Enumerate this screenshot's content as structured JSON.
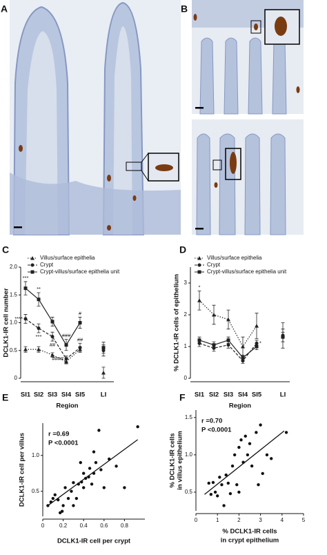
{
  "panel_labels": [
    "A",
    "B"
  ],
  "chart_data": [
    {
      "type": "line",
      "label": "C",
      "ylabel": [
        "DCLK1-IR cell number"
      ],
      "xlabel": [
        "Region"
      ],
      "categories": [
        "SI1",
        "SI2",
        "SI3",
        "SI4",
        "SI5",
        "LI"
      ],
      "ylim": [
        0,
        2
      ],
      "yticks": [
        0,
        0.5,
        {
          "value": 1,
          "label": "1.0"
        },
        1.5,
        {
          "value": 2,
          "label": "2.0"
        }
      ],
      "series": [
        {
          "name": "Villus/surface epithelia",
          "color": "#222222",
          "marker": "triangle",
          "linestyle": "dotted",
          "values": [
            0.52,
            0.52,
            0.42,
            0.3,
            0.52,
            0.1
          ],
          "errors": [
            0.05,
            0.05,
            0.04,
            0.04,
            0.05,
            0.1
          ]
        },
        {
          "name": "Crypt",
          "color": "#222222",
          "marker": "circle",
          "linestyle": "dashed",
          "values": [
            1.07,
            0.9,
            0.75,
            0.35,
            0.55,
            0.5
          ],
          "errors": [
            0.08,
            0.08,
            0.08,
            0.05,
            0.08,
            0.1
          ]
        },
        {
          "name": "Crypt-villus/surface epithelia unit",
          "color": "#222222",
          "marker": "square",
          "linestyle": "solid",
          "values": [
            1.62,
            1.42,
            1.02,
            0.6,
            1.0,
            0.55
          ],
          "errors": [
            0.12,
            0.12,
            0.08,
            0.1,
            0.1,
            0.1
          ]
        }
      ],
      "annotations": [
        {
          "text": "***",
          "series": 2,
          "index": 0,
          "side": "above"
        },
        {
          "text": "****",
          "series": 1,
          "index": 0,
          "side": "left"
        },
        {
          "text": "**",
          "series": 2,
          "index": 1,
          "side": "above"
        },
        {
          "text": "***",
          "series": 1,
          "index": 1,
          "side": "below"
        },
        {
          "text": "##",
          "series": 1,
          "index": 2,
          "side": "below"
        },
        {
          "text": "###",
          "series": 2,
          "index": 3,
          "side": "above"
        },
        {
          "text": "####",
          "series": 1,
          "index": 3,
          "side": "left"
        },
        {
          "text": "#",
          "series": 2,
          "index": 4,
          "side": "above"
        },
        {
          "text": "##",
          "series": 1,
          "index": 4,
          "side": "above"
        }
      ]
    },
    {
      "type": "line",
      "label": "D",
      "ylabel": [
        "% DCLK1-IR cells of epithelium"
      ],
      "xlabel": [
        "Region"
      ],
      "categories": [
        "SI1",
        "SI2",
        "SI3",
        "SI4",
        "SI5",
        "LI"
      ],
      "ylim": [
        0,
        3.5
      ],
      "yticks": [
        0,
        1,
        2,
        3
      ],
      "series": [
        {
          "name": "Villus/surface epithelia",
          "color": "#222222",
          "marker": "triangle",
          "linestyle": "dotted",
          "values": [
            2.45,
            2.0,
            1.85,
            1.0,
            1.65,
            1.35
          ],
          "errors": [
            0.3,
            0.3,
            0.3,
            0.3,
            0.4,
            0.4
          ]
        },
        {
          "name": "Crypt",
          "color": "#222222",
          "marker": "circle",
          "linestyle": "dashed",
          "values": [
            1.1,
            0.95,
            1.05,
            0.55,
            1.1,
            1.35
          ],
          "errors": [
            0.1,
            0.1,
            0.1,
            0.08,
            0.1,
            0.2
          ]
        },
        {
          "name": "Crypt-villus/surface epithelia unit",
          "color": "#222222",
          "marker": "square",
          "linestyle": "solid",
          "values": [
            1.2,
            1.05,
            1.2,
            0.65,
            1.0,
            1.3
          ],
          "errors": [
            0.1,
            0.1,
            0.1,
            0.08,
            0.1,
            0.15
          ]
        }
      ],
      "annotations": [
        {
          "text": "*",
          "series": 0,
          "index": 0,
          "side": "above"
        },
        {
          "text": "*",
          "series": 1,
          "index": 4,
          "side": "right"
        }
      ]
    },
    {
      "type": "scatter",
      "label": "E",
      "ylabel": [
        "DCLK1-IR cell per villus"
      ],
      "xlabel": [
        "DCLK1-IR cell per crypt"
      ],
      "stats": [
        "r =0.69",
        "P <0.0001"
      ],
      "xlim": [
        0,
        1
      ],
      "xticks": [
        0,
        0.2,
        0.4,
        0.6,
        0.8
      ],
      "ylim": [
        0.15,
        1.45
      ],
      "yticks": [
        0.5,
        {
          "value": 1,
          "label": "1.0"
        }
      ],
      "color": "#111111",
      "x": [
        0.05,
        0.08,
        0.1,
        0.12,
        0.15,
        0.17,
        0.19,
        0.2,
        0.22,
        0.25,
        0.28,
        0.3,
        0.3,
        0.33,
        0.35,
        0.37,
        0.38,
        0.4,
        0.4,
        0.42,
        0.45,
        0.46,
        0.48,
        0.5,
        0.5,
        0.52,
        0.55,
        0.57,
        0.6,
        0.65,
        0.72,
        0.8,
        0.93
      ],
      "values": [
        0.3,
        0.35,
        0.4,
        0.45,
        0.38,
        0.2,
        0.22,
        0.3,
        0.55,
        0.4,
        0.5,
        0.62,
        0.3,
        0.4,
        0.6,
        0.9,
        0.63,
        0.55,
        0.75,
        0.68,
        0.7,
        0.82,
        0.6,
        1.05,
        0.75,
        0.9,
        1.35,
        0.8,
        0.55,
        0.95,
        0.85,
        0.55,
        1.4
      ],
      "fit": {
        "x": [
          0.05,
          0.93
        ],
        "y": [
          0.3,
          1.22
        ]
      }
    },
    {
      "type": "scatter",
      "label": "F",
      "ylabel": [
        "% DCLK1-IR cells",
        "in villus epithelium"
      ],
      "xlabel": [
        "% DCLK1-IR cells",
        "in crypt epithelium"
      ],
      "stats": [
        "r =0.70",
        "P <0.0001"
      ],
      "xlim": [
        0,
        5
      ],
      "xticks": [
        0,
        1,
        2,
        3,
        4,
        5
      ],
      "ylim": [
        0.25,
        1.6
      ],
      "yticks": [
        0.5,
        {
          "value": 1,
          "label": "1.0"
        },
        1.5
      ],
      "color": "#111111",
      "x": [
        0.6,
        0.7,
        0.8,
        0.9,
        1.0,
        1.1,
        1.2,
        1.3,
        1.4,
        1.5,
        1.6,
        1.7,
        1.8,
        1.9,
        2.0,
        2.0,
        2.1,
        2.2,
        2.3,
        2.4,
        2.5,
        2.6,
        2.8,
        2.9,
        3.0,
        3.1,
        3.3,
        3.5,
        4.2
      ],
      "values": [
        0.62,
        0.47,
        0.63,
        0.5,
        0.45,
        0.7,
        0.6,
        0.32,
        0.73,
        0.62,
        0.48,
        0.85,
        1.0,
        0.6,
        1.1,
        0.5,
        1.2,
        0.9,
        1.25,
        1.0,
        1.15,
        0.85,
        1.3,
        0.6,
        1.4,
        0.75,
        1.0,
        0.95,
        1.3
      ],
      "fit": {
        "x": [
          0.4,
          4.1
        ],
        "y": [
          0.47,
          1.32
        ]
      }
    }
  ]
}
